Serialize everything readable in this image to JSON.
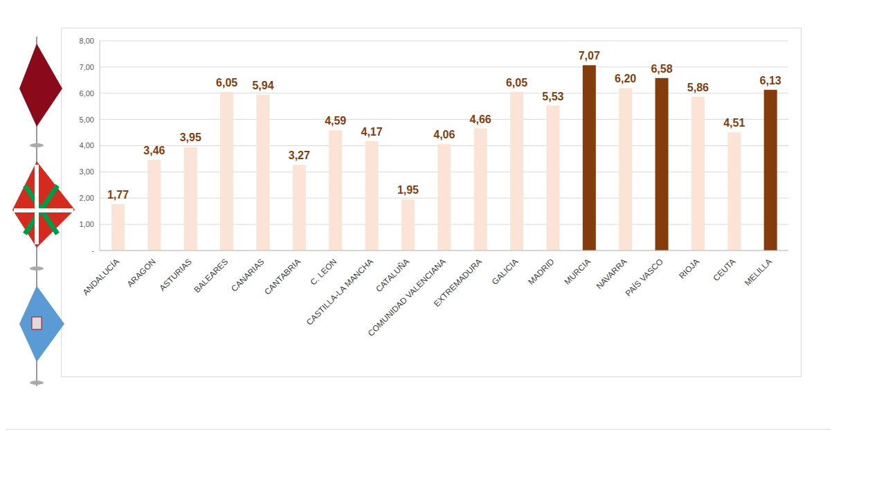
{
  "chart_data": {
    "type": "bar",
    "categories": [
      "ANDALUCÍA",
      "ARAGON",
      "ASTURIAS",
      "BALEARES",
      "CANARIAS",
      "CANTABRIA",
      "C. LEON",
      "CASTILLA-LA MANCHA",
      "CATALUÑA",
      "COMUNIDAD VALENCIANA",
      "EXTREMADURA",
      "GALICIA",
      "MADRID",
      "MURCIA",
      "NAVARRA",
      "PAÍS VASCO",
      "RIOJA",
      "CEUTA",
      "MELILLA"
    ],
    "values": [
      1.77,
      3.46,
      3.95,
      6.05,
      5.94,
      3.27,
      4.59,
      4.17,
      1.95,
      4.06,
      4.66,
      6.05,
      5.53,
      7.07,
      6.2,
      6.58,
      5.86,
      4.51,
      6.13
    ],
    "value_labels": [
      "1,77",
      "3,46",
      "3,95",
      "6,05",
      "5,94",
      "3,27",
      "4,59",
      "4,17",
      "1,95",
      "4,06",
      "4,66",
      "6,05",
      "5,53",
      "7,07",
      "6,20",
      "6,58",
      "5,86",
      "4,51",
      "6,13"
    ],
    "colors": [
      "#fbe3d6",
      "#fbe3d6",
      "#fbe3d6",
      "#fbe3d6",
      "#fbe3d6",
      "#fbe3d6",
      "#fbe3d6",
      "#fbe3d6",
      "#fbe3d6",
      "#fbe3d6",
      "#fbe3d6",
      "#fbe3d6",
      "#fbe3d6",
      "#843c0c",
      "#fbe3d6",
      "#843c0c",
      "#fbe3d6",
      "#fbe3d6",
      "#843c0c"
    ],
    "ylim": [
      0,
      8
    ],
    "yticks": [
      {
        "value": 0,
        "label": "-"
      },
      {
        "value": 1,
        "label": "1,00"
      },
      {
        "value": 2,
        "label": "2,00"
      },
      {
        "value": 3,
        "label": "3,00"
      },
      {
        "value": 4,
        "label": "4,00"
      },
      {
        "value": 5,
        "label": "5,00"
      },
      {
        "value": 6,
        "label": "6,00"
      },
      {
        "value": 7,
        "label": "7,00"
      },
      {
        "value": 8,
        "label": "8,00"
      }
    ],
    "grid": true,
    "data_labels": true
  }
}
